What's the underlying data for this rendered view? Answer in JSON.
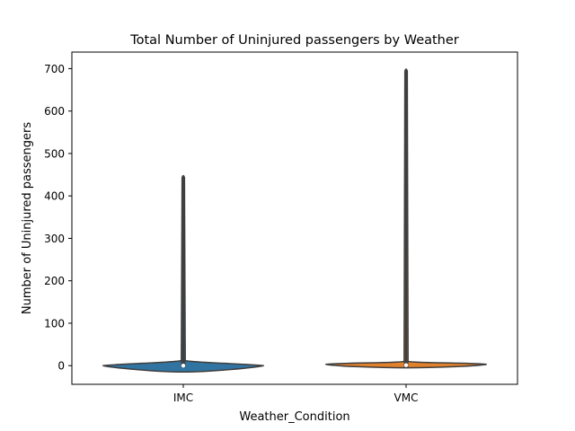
{
  "chart_data": {
    "type": "violin",
    "title": "Total Number of Uninjured passengers by Weather",
    "xlabel": "Weather_Condition",
    "ylabel": "Number of Uninjured passengers",
    "categories": [
      "IMC",
      "VMC"
    ],
    "ylim": [
      -44,
      739
    ],
    "yticks": [
      0,
      100,
      200,
      300,
      400,
      500,
      600,
      700
    ],
    "grid": false,
    "violins": [
      {
        "category": "IMC",
        "color": "#3274a1",
        "min": 0,
        "max": 448,
        "q1": 0,
        "median": 0,
        "q3": 3,
        "whisker_low": 0,
        "whisker_high": 10,
        "kde_y_min": -15,
        "kde_y_peak": 0,
        "kde_y_top": 12
      },
      {
        "category": "VMC",
        "color": "#e1812c",
        "min": 0,
        "max": 699,
        "q1": 0,
        "median": 1,
        "q3": 3,
        "whisker_low": 0,
        "whisker_high": 9,
        "kde_y_min": -5,
        "kde_y_peak": 3,
        "kde_y_top": 10
      }
    ]
  }
}
